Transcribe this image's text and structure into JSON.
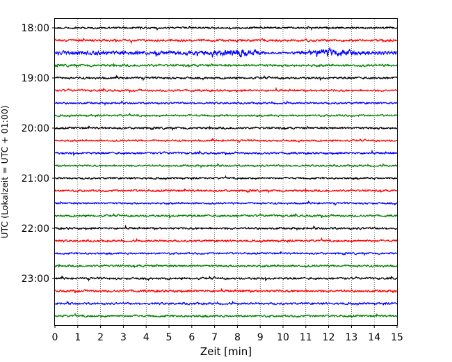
{
  "chart_data": {
    "type": "line",
    "title": "",
    "xlabel": "Zeit  [min]",
    "ylabel": "UTC (Lokalzeit = UTC + 01:00)",
    "xlim": [
      0,
      15
    ],
    "x_ticks": [
      "0",
      "1",
      "2",
      "3",
      "4",
      "5",
      "6",
      "7",
      "8",
      "9",
      "10",
      "11",
      "12",
      "13",
      "14",
      "15"
    ],
    "y_ticks": [
      "18:00",
      "19:00",
      "20:00",
      "21:00",
      "22:00",
      "23:00"
    ],
    "grid": "vertical dotted lines at each minute",
    "legend": "none",
    "trace_colors": [
      "#000000",
      "#ff0000",
      "#0000ff",
      "#007f00"
    ],
    "traces": [
      {
        "start": "18:00",
        "color": "#000000",
        "amplitude": 0.8
      },
      {
        "start": "18:15",
        "color": "#ff0000",
        "amplitude": 1.0
      },
      {
        "start": "18:30",
        "color": "#0000ff",
        "amplitude": 1.7
      },
      {
        "start": "18:45",
        "color": "#007f00",
        "amplitude": 1.0
      },
      {
        "start": "19:00",
        "color": "#000000",
        "amplitude": 0.9
      },
      {
        "start": "19:15",
        "color": "#ff0000",
        "amplitude": 0.9
      },
      {
        "start": "19:30",
        "color": "#0000ff",
        "amplitude": 0.8
      },
      {
        "start": "19:45",
        "color": "#007f00",
        "amplitude": 0.8
      },
      {
        "start": "20:00",
        "color": "#000000",
        "amplitude": 0.9
      },
      {
        "start": "20:15",
        "color": "#ff0000",
        "amplitude": 0.8
      },
      {
        "start": "20:30",
        "color": "#0000ff",
        "amplitude": 0.9
      },
      {
        "start": "20:45",
        "color": "#007f00",
        "amplitude": 0.8
      },
      {
        "start": "21:00",
        "color": "#000000",
        "amplitude": 0.8
      },
      {
        "start": "21:15",
        "color": "#ff0000",
        "amplitude": 0.9
      },
      {
        "start": "21:30",
        "color": "#0000ff",
        "amplitude": 0.8
      },
      {
        "start": "21:45",
        "color": "#007f00",
        "amplitude": 0.9
      },
      {
        "start": "22:00",
        "color": "#000000",
        "amplitude": 0.9
      },
      {
        "start": "22:15",
        "color": "#ff0000",
        "amplitude": 0.9
      },
      {
        "start": "22:30",
        "color": "#0000ff",
        "amplitude": 0.8
      },
      {
        "start": "22:45",
        "color": "#007f00",
        "amplitude": 0.9
      },
      {
        "start": "23:00",
        "color": "#000000",
        "amplitude": 0.9
      },
      {
        "start": "23:15",
        "color": "#ff0000",
        "amplitude": 1.0
      },
      {
        "start": "23:30",
        "color": "#0000ff",
        "amplitude": 0.9
      },
      {
        "start": "23:45",
        "color": "#007f00",
        "amplitude": 0.9
      }
    ]
  }
}
